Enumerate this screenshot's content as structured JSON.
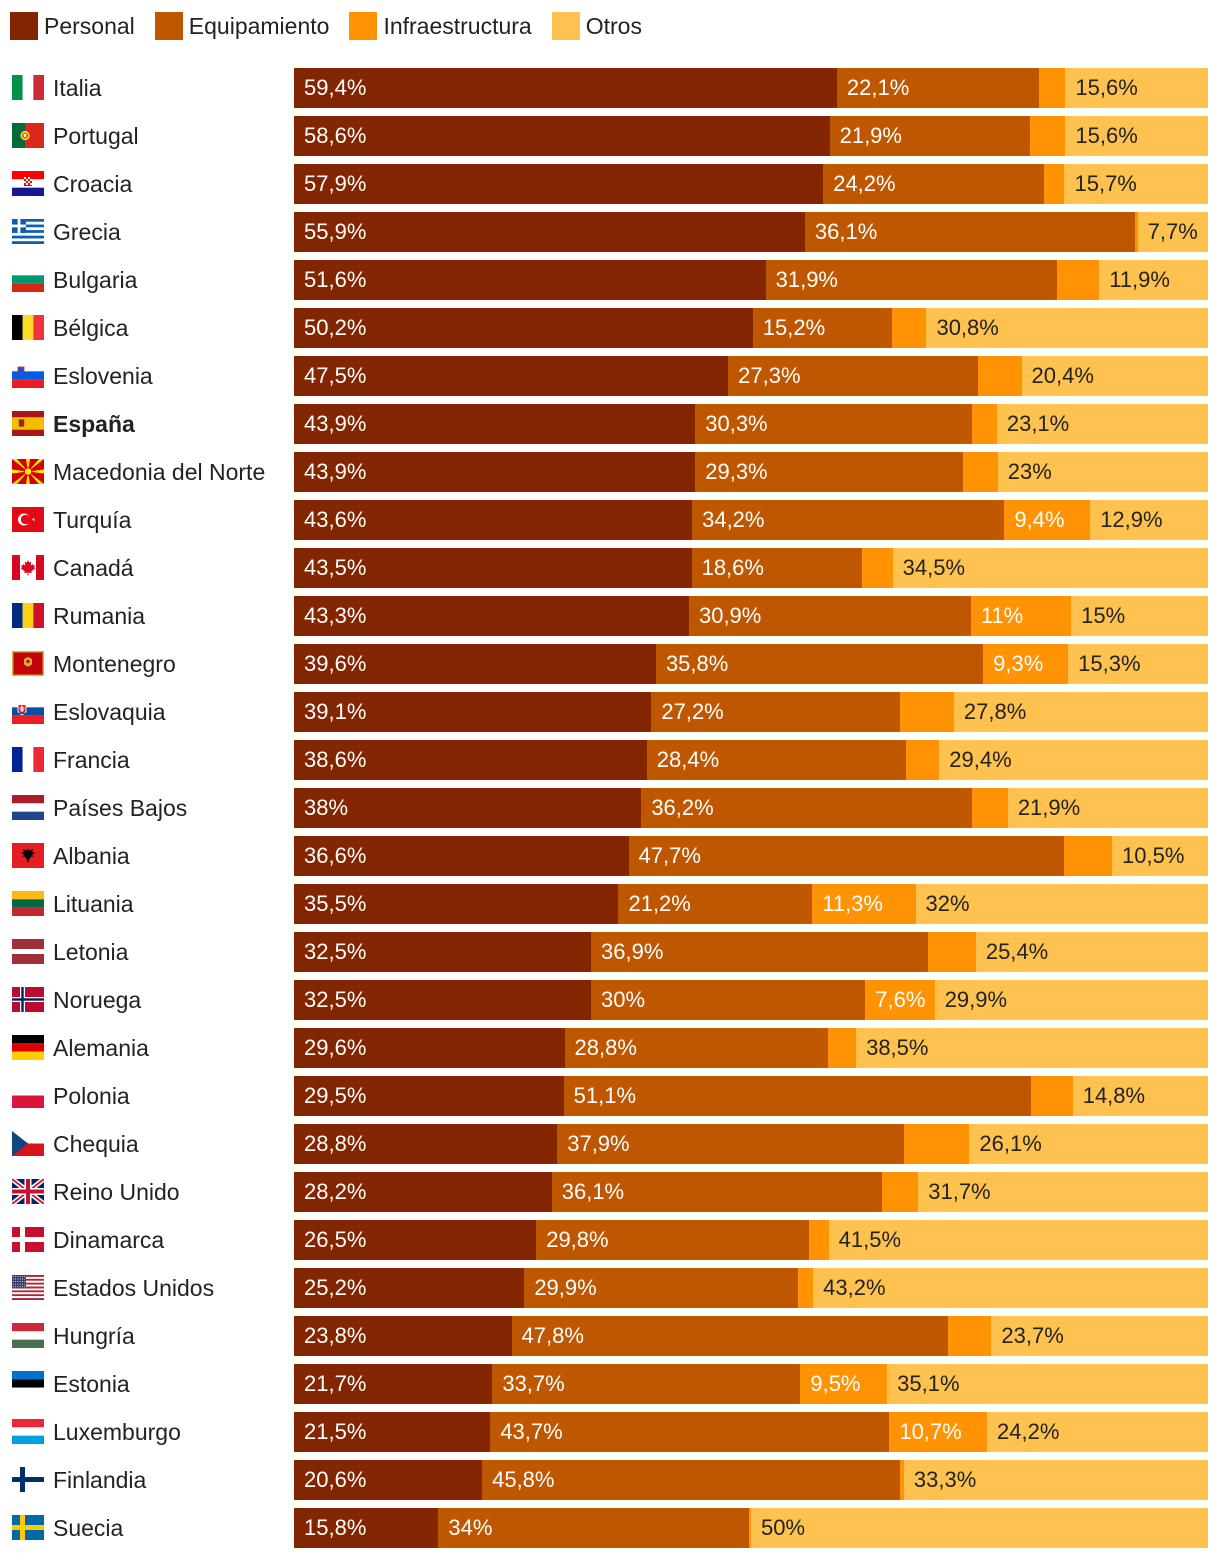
{
  "chart_data": {
    "type": "bar",
    "orientation": "horizontal",
    "stacked": true,
    "title": "",
    "xlabel": "",
    "ylabel": "",
    "xlim": [
      0,
      100
    ],
    "legend_position": "top-left",
    "series": [
      {
        "name": "Personal",
        "color": "#832600"
      },
      {
        "name": "Equipamiento",
        "color": "#bf5700"
      },
      {
        "name": "Infraestructura",
        "color": "#ff9303"
      },
      {
        "name": "Otros",
        "color": "#ffc24f"
      }
    ],
    "rows": [
      {
        "country": "Italia",
        "flag": "it-flag",
        "values": [
          59.4,
          22.1,
          2.9,
          15.6
        ],
        "labels": [
          "59,4%",
          "22,1%",
          "",
          "15,6%"
        ]
      },
      {
        "country": "Portugal",
        "flag": "pt-flag",
        "values": [
          58.6,
          21.9,
          3.9,
          15.6
        ],
        "labels": [
          "58,6%",
          "21,9%",
          "",
          "15,6%"
        ]
      },
      {
        "country": "Croacia",
        "flag": "hr-flag",
        "values": [
          57.9,
          24.2,
          2.2,
          15.7
        ],
        "labels": [
          "57,9%",
          "24,2%",
          "",
          "15,7%"
        ]
      },
      {
        "country": "Grecia",
        "flag": "gr-flag",
        "values": [
          55.9,
          36.1,
          0.3,
          7.7
        ],
        "labels": [
          "55,9%",
          "36,1%",
          "",
          "7,7%"
        ]
      },
      {
        "country": "Bulgaria",
        "flag": "bg-flag",
        "values": [
          51.6,
          31.9,
          4.6,
          11.9
        ],
        "labels": [
          "51,6%",
          "31,9%",
          "",
          "11,9%"
        ]
      },
      {
        "country": "Bélgica",
        "flag": "be-flag",
        "values": [
          50.2,
          15.2,
          3.8,
          30.8
        ],
        "labels": [
          "50,2%",
          "15,2%",
          "",
          "30,8%"
        ]
      },
      {
        "country": "Eslovenia",
        "flag": "si-flag",
        "values": [
          47.5,
          27.3,
          4.8,
          20.4
        ],
        "labels": [
          "47,5%",
          "27,3%",
          "",
          "20,4%"
        ]
      },
      {
        "country": "España",
        "flag": "es-flag",
        "bold": true,
        "values": [
          43.9,
          30.3,
          2.7,
          23.1
        ],
        "labels": [
          "43,9%",
          "30,3%",
          "",
          "23,1%"
        ]
      },
      {
        "country": "Macedonia del Norte",
        "flag": "mk-flag",
        "values": [
          43.9,
          29.3,
          3.8,
          23.0
        ],
        "labels": [
          "43,9%",
          "29,3%",
          "",
          "23%"
        ]
      },
      {
        "country": "Turquía",
        "flag": "tr-flag",
        "values": [
          43.6,
          34.2,
          9.4,
          12.9
        ],
        "labels": [
          "43,6%",
          "34,2%",
          "9,4%",
          "12,9%"
        ]
      },
      {
        "country": "Canadá",
        "flag": "ca-flag",
        "values": [
          43.5,
          18.6,
          3.4,
          34.5
        ],
        "labels": [
          "43,5%",
          "18,6%",
          "",
          "34,5%"
        ]
      },
      {
        "country": "Rumania",
        "flag": "ro-flag",
        "values": [
          43.3,
          30.9,
          11.0,
          15.0
        ],
        "labels": [
          "43,3%",
          "30,9%",
          "11%",
          "15%"
        ]
      },
      {
        "country": "Montenegro",
        "flag": "me-flag",
        "values": [
          39.6,
          35.8,
          9.3,
          15.3
        ],
        "labels": [
          "39,6%",
          "35,8%",
          "9,3%",
          "15,3%"
        ]
      },
      {
        "country": "Eslovaquia",
        "flag": "sk-flag",
        "values": [
          39.1,
          27.2,
          5.9,
          27.8
        ],
        "labels": [
          "39,1%",
          "27,2%",
          "",
          "27,8%"
        ]
      },
      {
        "country": "Francia",
        "flag": "fr-flag",
        "values": [
          38.6,
          28.4,
          3.6,
          29.4
        ],
        "labels": [
          "38,6%",
          "28,4%",
          "",
          "29,4%"
        ]
      },
      {
        "country": "Países Bajos",
        "flag": "nl-flag",
        "values": [
          38.0,
          36.2,
          3.9,
          21.9
        ],
        "labels": [
          "38%",
          "36,2%",
          "",
          "21,9%"
        ]
      },
      {
        "country": "Albania",
        "flag": "al-flag",
        "values": [
          36.6,
          47.7,
          5.2,
          10.5
        ],
        "labels": [
          "36,6%",
          "47,7%",
          "",
          "10,5%"
        ]
      },
      {
        "country": "Lituania",
        "flag": "lt-flag",
        "values": [
          35.5,
          21.2,
          11.3,
          32.0
        ],
        "labels": [
          "35,5%",
          "21,2%",
          "11,3%",
          "32%"
        ]
      },
      {
        "country": "Letonia",
        "flag": "lv-flag",
        "values": [
          32.5,
          36.9,
          5.2,
          25.4
        ],
        "labels": [
          "32,5%",
          "36,9%",
          "",
          "25,4%"
        ]
      },
      {
        "country": "Noruega",
        "flag": "no-flag",
        "values": [
          32.5,
          30.0,
          7.6,
          29.9
        ],
        "labels": [
          "32,5%",
          "30%",
          "7,6%",
          "29,9%"
        ]
      },
      {
        "country": "Alemania",
        "flag": "de-flag",
        "values": [
          29.6,
          28.8,
          3.1,
          38.5
        ],
        "labels": [
          "29,6%",
          "28,8%",
          "",
          "38,5%"
        ]
      },
      {
        "country": "Polonia",
        "flag": "pl-flag",
        "values": [
          29.5,
          51.1,
          4.6,
          14.8
        ],
        "labels": [
          "29,5%",
          "51,1%",
          "",
          "14,8%"
        ]
      },
      {
        "country": "Chequia",
        "flag": "cz-flag",
        "values": [
          28.8,
          37.9,
          7.2,
          26.1
        ],
        "labels": [
          "28,8%",
          "37,9%",
          "",
          "26,1%"
        ]
      },
      {
        "country": "Reino Unido",
        "flag": "gb-flag",
        "values": [
          28.2,
          36.1,
          4.0,
          31.7
        ],
        "labels": [
          "28,2%",
          "36,1%",
          "",
          "31,7%"
        ]
      },
      {
        "country": "Dinamarca",
        "flag": "dk-flag",
        "values": [
          26.5,
          29.8,
          2.2,
          41.5
        ],
        "labels": [
          "26,5%",
          "29,8%",
          "",
          "41,5%"
        ]
      },
      {
        "country": "Estados Unidos",
        "flag": "us-flag",
        "values": [
          25.2,
          29.9,
          1.7,
          43.2
        ],
        "labels": [
          "25,2%",
          "29,9%",
          "",
          "43,2%"
        ]
      },
      {
        "country": "Hungría",
        "flag": "hu-flag",
        "values": [
          23.8,
          47.8,
          4.7,
          23.7
        ],
        "labels": [
          "23,8%",
          "47,8%",
          "",
          "23,7%"
        ]
      },
      {
        "country": "Estonia",
        "flag": "ee-flag",
        "values": [
          21.7,
          33.7,
          9.5,
          35.1
        ],
        "labels": [
          "21,7%",
          "33,7%",
          "9,5%",
          "35,1%"
        ]
      },
      {
        "country": "Luxemburgo",
        "flag": "lu-flag",
        "values": [
          21.5,
          43.7,
          10.7,
          24.2
        ],
        "labels": [
          "21,5%",
          "43,7%",
          "10,7%",
          "24,2%"
        ]
      },
      {
        "country": "Finlandia",
        "flag": "fi-flag",
        "values": [
          20.6,
          45.8,
          0.4,
          33.3
        ],
        "labels": [
          "20,6%",
          "45,8%",
          "",
          "33,3%"
        ]
      },
      {
        "country": "Suecia",
        "flag": "se-flag",
        "values": [
          15.8,
          34.0,
          0.2,
          50.0
        ],
        "labels": [
          "15,8%",
          "34%",
          "",
          "50%"
        ]
      }
    ]
  }
}
